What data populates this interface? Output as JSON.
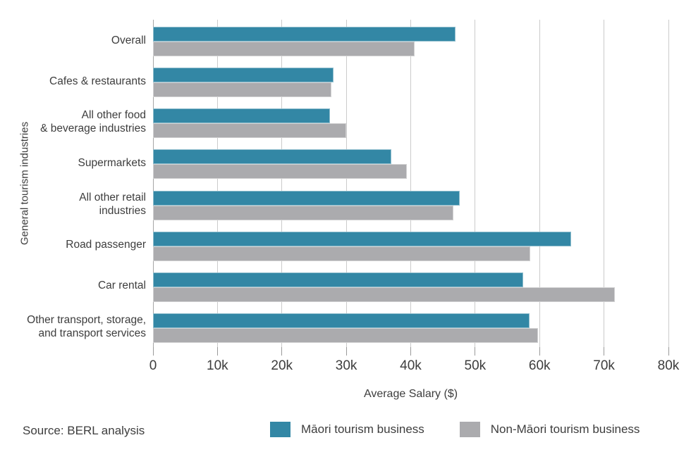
{
  "source_note": "Source: BERL analysis",
  "chart_data": {
    "type": "bar",
    "orientation": "horizontal",
    "title": "",
    "xlabel": "Average Salary ($)",
    "ylabel": "General tourism industries",
    "xlim": [
      0,
      80000
    ],
    "xtick_labels": [
      "0",
      "10k",
      "20k",
      "30k",
      "40k",
      "50k",
      "60k",
      "70k",
      "80k"
    ],
    "grid": true,
    "legend_position": "bottom",
    "categories": [
      "Overall",
      "Cafes & restaurants",
      "All other food\n& beverage industries",
      "Supermarkets",
      "All other retail\nindustries",
      "Road passenger",
      "Car rental",
      "Other transport, storage,\nand transport services"
    ],
    "series": [
      {
        "name": "Māori tourism business",
        "color": "#3387A5",
        "values": [
          46900,
          28000,
          27500,
          37000,
          47600,
          64900,
          57500,
          58400
        ]
      },
      {
        "name": "Non-Māori tourism business",
        "color": "#ABABAE",
        "values": [
          40600,
          27700,
          30000,
          39400,
          46600,
          58600,
          71700,
          59700
        ]
      }
    ]
  }
}
